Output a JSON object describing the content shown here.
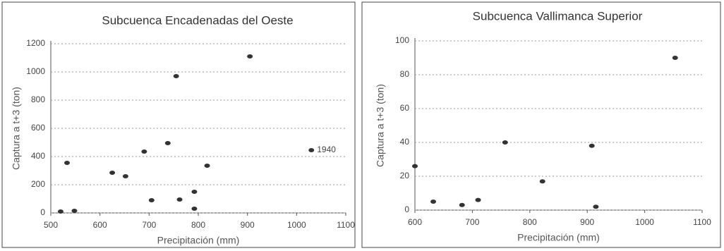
{
  "chart_data": [
    {
      "type": "scatter",
      "title": "Subcuenca Encadenadas del Oeste",
      "x_label": "Precipitación (mm)",
      "y_label": "Captura a t+3 (ton)",
      "series": [
        {
          "name": "Captura",
          "color": "#333333",
          "x": [
            520,
            548,
            533,
            625,
            652,
            690,
            705,
            738,
            755,
            762,
            792,
            792,
            818,
            905,
            1030
          ],
          "values": [
            10,
            15,
            355,
            285,
            260,
            435,
            90,
            495,
            970,
            95,
            30,
            150,
            335,
            1110,
            445
          ]
        }
      ],
      "annotation": "1940",
      "xlim": [
        500,
        1100
      ],
      "xticks": [
        500,
        600,
        700,
        800,
        900,
        1000,
        1100
      ],
      "ylim": [
        0,
        1200
      ],
      "yticks": [
        0,
        200,
        400,
        600,
        800,
        1000,
        1200
      ],
      "grid": true
    },
    {
      "type": "scatter",
      "title": "Subcuenca Vallimanca Superior",
      "x_label": "Precipitación (mm)",
      "y_label": "Captura a t+3 (ton)",
      "series": [
        {
          "name": "Captura",
          "color": "#333333",
          "x": [
            600,
            632,
            682,
            710,
            757,
            822,
            908,
            915,
            1053
          ],
          "values": [
            26,
            5,
            3,
            6,
            40,
            17,
            38,
            2,
            90
          ]
        }
      ],
      "xlim": [
        600,
        1100
      ],
      "xticks": [
        600,
        700,
        800,
        900,
        1000,
        1100
      ],
      "ylim": [
        0,
        100
      ],
      "yticks": [
        0,
        20,
        40,
        60,
        80,
        100
      ],
      "grid": true
    }
  ]
}
